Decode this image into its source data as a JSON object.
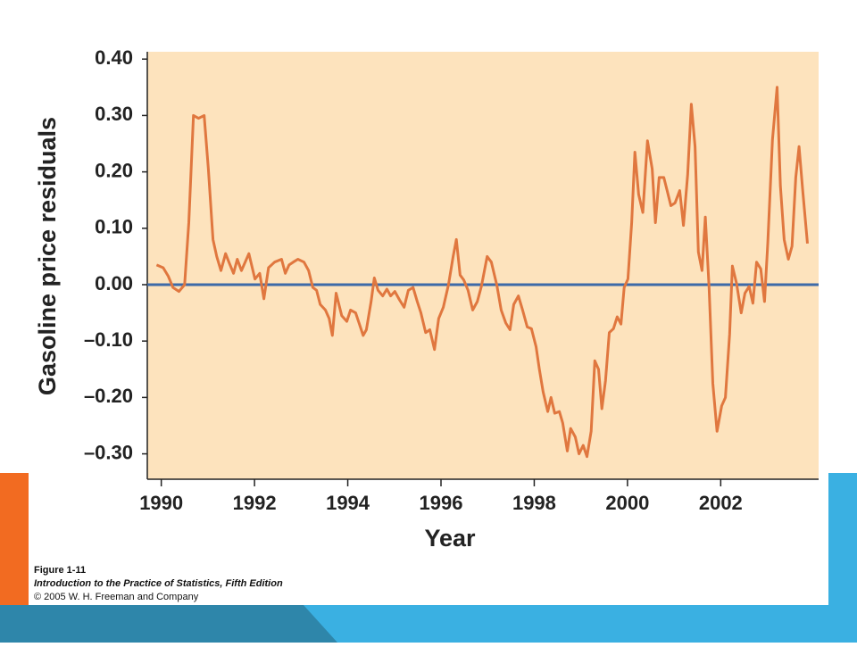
{
  "chart_data": {
    "type": "line",
    "y_label": "Gasoline price residuals",
    "x_label": "Year",
    "color": "#e0773f",
    "reference_line": {
      "value": 0,
      "color": "#3d6aa8"
    },
    "background": "#fde3bd",
    "xlim": [
      1989.7,
      2004.1
    ],
    "ylim": [
      -0.345,
      0.413
    ],
    "xticks": [
      1990,
      1992,
      1994,
      1996,
      1998,
      2000,
      2002
    ],
    "yticks": [
      {
        "value": 0.4,
        "label": "0.40"
      },
      {
        "value": 0.3,
        "label": "0.30"
      },
      {
        "value": 0.2,
        "label": "0.20"
      },
      {
        "value": 0.1,
        "label": "0.10"
      },
      {
        "value": 0,
        "label": "0.00"
      },
      {
        "value": -0.1,
        "label": "–0.10"
      },
      {
        "value": -0.2,
        "label": "–0.20"
      },
      {
        "value": -0.3,
        "label": "–0.30"
      }
    ],
    "x": [
      1989.9,
      1990.04,
      1990.15,
      1990.25,
      1990.38,
      1990.5,
      1990.59,
      1990.69,
      1990.8,
      1990.92,
      1991.01,
      1991.11,
      1991.19,
      1991.28,
      1991.38,
      1991.45,
      1991.55,
      1991.63,
      1991.72,
      1991.88,
      1992.01,
      1992.11,
      1992.2,
      1992.3,
      1992.43,
      1992.58,
      1992.66,
      1992.74,
      1992.83,
      1992.93,
      1993.06,
      1993.16,
      1993.25,
      1993.33,
      1993.41,
      1993.52,
      1993.6,
      1993.67,
      1993.75,
      1993.87,
      1993.98,
      1994.06,
      1994.17,
      1994.25,
      1994.33,
      1994.4,
      1994.5,
      1994.57,
      1994.65,
      1994.75,
      1994.84,
      1994.92,
      1995.01,
      1995.11,
      1995.21,
      1995.3,
      1995.4,
      1995.49,
      1995.57,
      1995.67,
      1995.76,
      1995.86,
      1995.95,
      1996.05,
      1996.16,
      1996.26,
      1996.33,
      1996.41,
      1996.49,
      1996.58,
      1996.68,
      1996.78,
      1996.87,
      1996.99,
      1997.08,
      1997.2,
      1997.29,
      1997.39,
      1997.48,
      1997.56,
      1997.66,
      1997.75,
      1997.85,
      1997.94,
      1998.04,
      1998.11,
      1998.19,
      1998.29,
      1998.36,
      1998.44,
      1998.54,
      1998.61,
      1998.71,
      1998.78,
      1998.88,
      1998.96,
      1999.05,
      1999.13,
      1999.22,
      1999.3,
      1999.38,
      1999.45,
      1999.53,
      1999.61,
      1999.7,
      1999.78,
      1999.86,
      1999.93,
      2000.01,
      2000.09,
      2000.16,
      2000.24,
      2000.33,
      2000.43,
      2000.53,
      2000.6,
      2000.68,
      2000.78,
      2000.85,
      2000.93,
      2001.02,
      2001.12,
      2001.2,
      2001.29,
      2001.37,
      2001.45,
      2001.52,
      2001.6,
      2001.67,
      2001.75,
      2001.83,
      2001.92,
      2002.02,
      2002.1,
      2002.19,
      2002.25,
      2002.34,
      2002.44,
      2002.52,
      2002.61,
      2002.69,
      2002.77,
      2002.86,
      2002.94,
      2003.01,
      2003.11,
      2003.21,
      2003.28,
      2003.36,
      2003.45,
      2003.53,
      2003.61,
      2003.68,
      2003.76,
      2003.86
    ],
    "values": [
      0.035,
      0.03,
      0.015,
      -0.005,
      -0.012,
      0.0,
      0.11,
      0.3,
      0.295,
      0.3,
      0.205,
      0.08,
      0.05,
      0.025,
      0.055,
      0.04,
      0.02,
      0.045,
      0.025,
      0.055,
      0.01,
      0.02,
      -0.025,
      0.03,
      0.04,
      0.045,
      0.02,
      0.035,
      0.04,
      0.045,
      0.04,
      0.025,
      -0.005,
      -0.01,
      -0.035,
      -0.045,
      -0.06,
      -0.09,
      -0.015,
      -0.055,
      -0.065,
      -0.045,
      -0.05,
      -0.07,
      -0.09,
      -0.08,
      -0.03,
      0.012,
      -0.01,
      -0.02,
      -0.008,
      -0.02,
      -0.012,
      -0.027,
      -0.04,
      -0.01,
      -0.005,
      -0.03,
      -0.05,
      -0.085,
      -0.08,
      -0.115,
      -0.06,
      -0.04,
      0.0,
      0.05,
      0.08,
      0.017,
      0.008,
      -0.01,
      -0.045,
      -0.03,
      -0.002,
      0.05,
      0.04,
      -0.002,
      -0.045,
      -0.068,
      -0.08,
      -0.035,
      -0.02,
      -0.045,
      -0.075,
      -0.078,
      -0.11,
      -0.15,
      -0.19,
      -0.225,
      -0.2,
      -0.228,
      -0.225,
      -0.245,
      -0.295,
      -0.255,
      -0.27,
      -0.3,
      -0.285,
      -0.305,
      -0.26,
      -0.135,
      -0.15,
      -0.22,
      -0.17,
      -0.085,
      -0.078,
      -0.057,
      -0.07,
      -0.005,
      0.01,
      0.11,
      0.235,
      0.16,
      0.128,
      0.255,
      0.205,
      0.11,
      0.19,
      0.19,
      0.167,
      0.14,
      0.145,
      0.167,
      0.105,
      0.195,
      0.32,
      0.245,
      0.058,
      0.025,
      0.12,
      -0.005,
      -0.175,
      -0.26,
      -0.215,
      -0.2,
      -0.088,
      0.033,
      0.002,
      -0.05,
      -0.015,
      -0.003,
      -0.033,
      0.04,
      0.028,
      -0.03,
      0.075,
      0.257,
      0.35,
      0.175,
      0.08,
      0.045,
      0.068,
      0.19,
      0.245,
      0.167,
      0.073
    ]
  },
  "caption": {
    "figure": "Figure 1-11",
    "book": "Introduction to the Practice of Statistics, Fifth Edition",
    "copyright": "© 2005 W. H. Freeman and Company"
  }
}
